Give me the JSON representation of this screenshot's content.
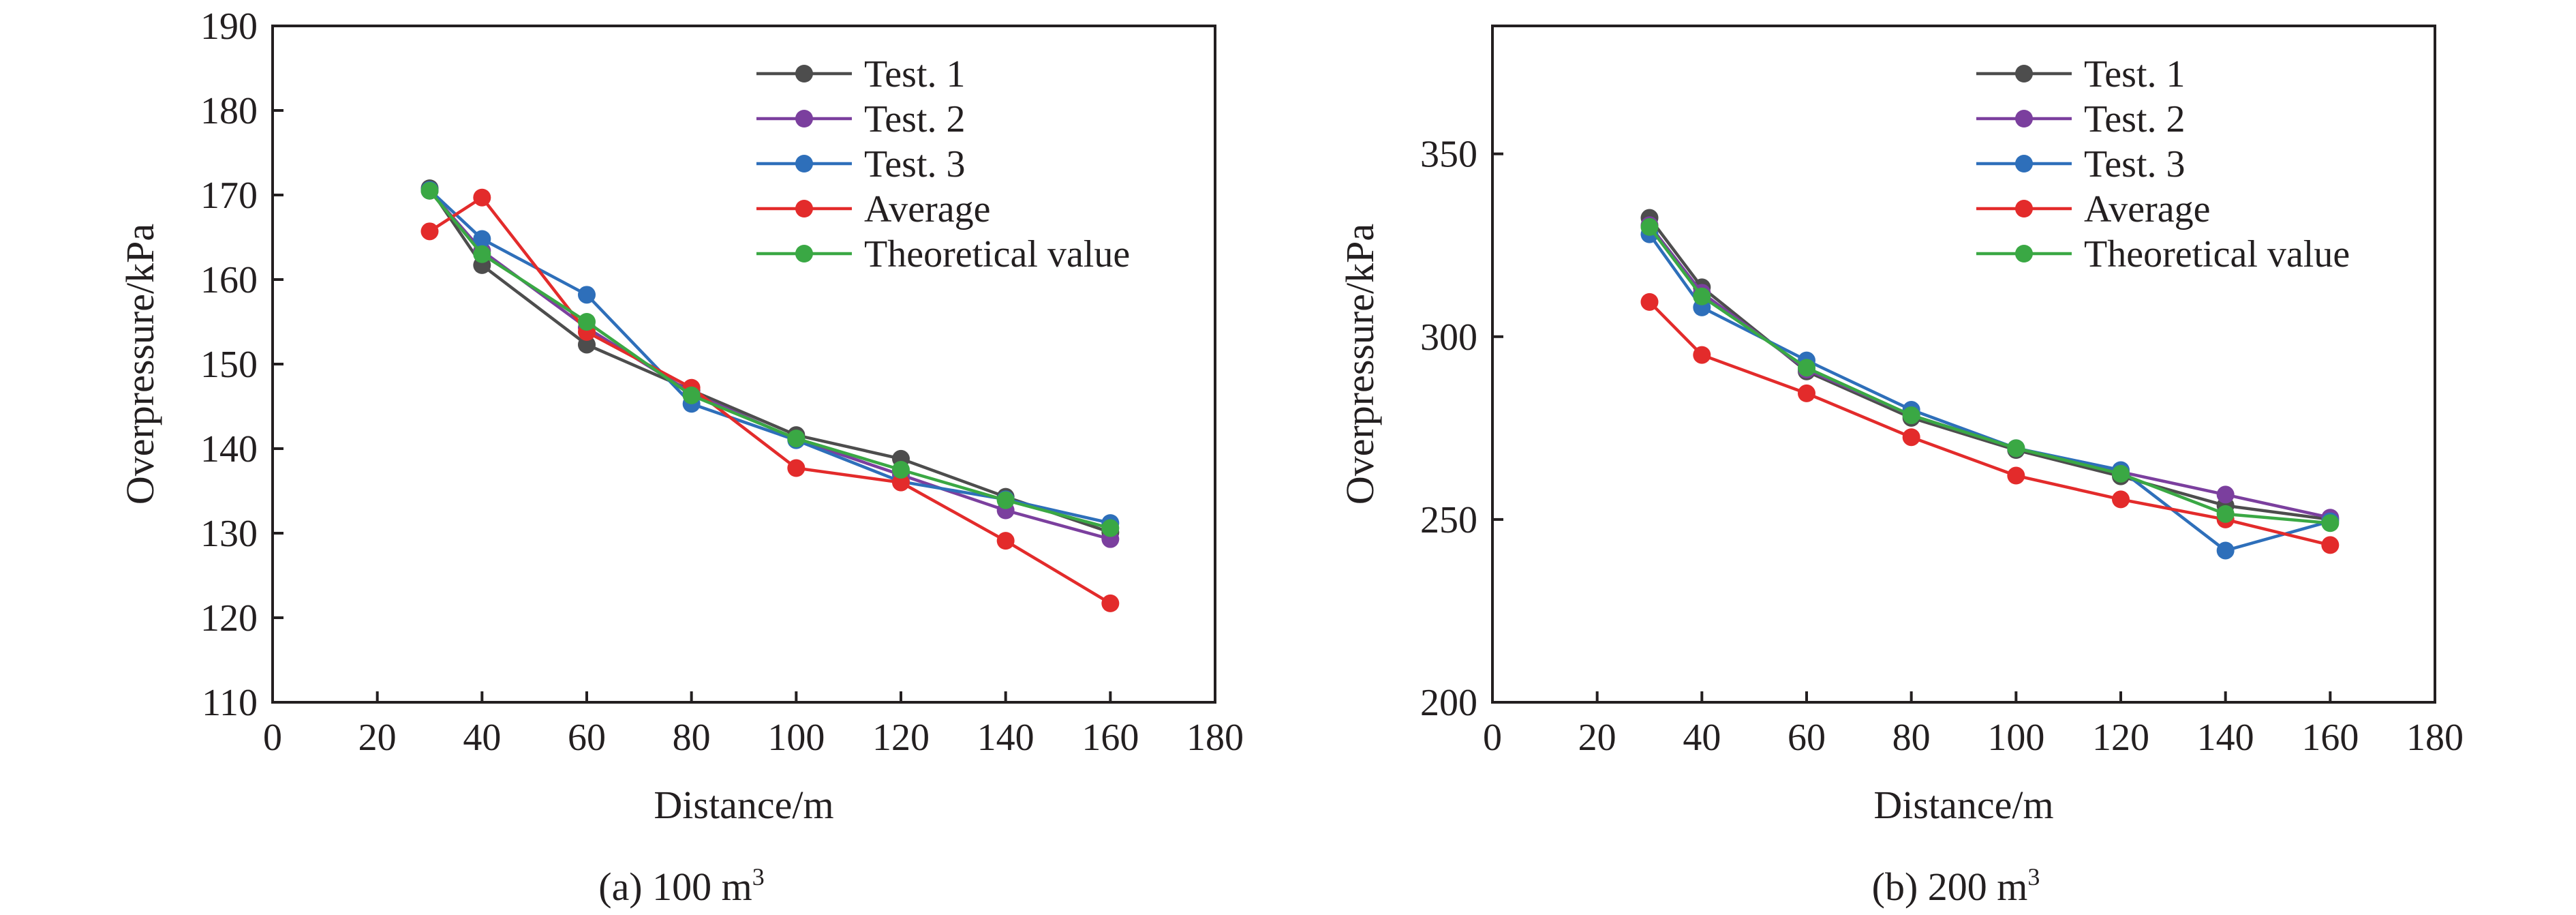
{
  "chart_data": [
    {
      "type": "line",
      "caption": "(a) 100 m",
      "caption_sup": "3",
      "xlabel": "Distance/m",
      "ylabel": "Overpressure/kPa",
      "xlim": [
        0,
        180
      ],
      "ylim": [
        110,
        190
      ],
      "xticks": [
        0,
        20,
        40,
        60,
        80,
        100,
        120,
        140,
        160,
        180
      ],
      "yticks": [
        110,
        120,
        130,
        140,
        150,
        160,
        170,
        180,
        190
      ],
      "grid": false,
      "legend_position": "top-right",
      "x": [
        30,
        40,
        60,
        80,
        100,
        120,
        140,
        160
      ],
      "series": [
        {
          "name": "Test. 1",
          "color": "#4d4d4d",
          "values": [
            170.8,
            161.7,
            152.3,
            146.9,
            141.6,
            138.8,
            134.3,
            130.1
          ]
        },
        {
          "name": "Test. 2",
          "color": "#7b3f9e",
          "values": [
            170.5,
            163.4,
            154.3,
            146.6,
            141.1,
            136.9,
            132.7,
            129.3
          ]
        },
        {
          "name": "Test. 3",
          "color": "#2e6fba",
          "values": [
            170.6,
            164.8,
            158.2,
            145.3,
            141.0,
            136.1,
            134.0,
            131.2
          ]
        },
        {
          "name": "Average",
          "color": "#e32b2b",
          "values": [
            165.7,
            169.7,
            153.8,
            147.2,
            137.7,
            136.0,
            129.1,
            121.7
          ]
        },
        {
          "name": "Theoretical value",
          "color": "#3aa844",
          "values": [
            170.5,
            163.0,
            155.0,
            146.3,
            141.2,
            137.5,
            133.9,
            130.6
          ]
        }
      ]
    },
    {
      "type": "line",
      "caption": "(b) 200 m",
      "caption_sup": "3",
      "xlabel": "Distance/m",
      "ylabel": "Overpressure/kPa",
      "xlim": [
        0,
        180
      ],
      "ylim": [
        200,
        385
      ],
      "xticks": [
        0,
        20,
        40,
        60,
        80,
        100,
        120,
        140,
        160,
        180
      ],
      "yticks": [
        200,
        250,
        300,
        350
      ],
      "grid": false,
      "legend_position": "top-right",
      "x": [
        30,
        40,
        60,
        80,
        100,
        120,
        140,
        160
      ],
      "series": [
        {
          "name": "Test. 1",
          "color": "#4d4d4d",
          "values": [
            332.5,
            313.5,
            290.5,
            277.8,
            269.0,
            261.8,
            253.8,
            250.0
          ]
        },
        {
          "name": "Test. 2",
          "color": "#7b3f9e",
          "values": [
            330.5,
            312.0,
            291.0,
            278.5,
            269.5,
            263.0,
            256.8,
            250.5
          ]
        },
        {
          "name": "Test. 3",
          "color": "#2e6fba",
          "values": [
            328.0,
            308.0,
            293.5,
            280.0,
            269.5,
            263.5,
            241.5,
            249.5
          ]
        },
        {
          "name": "Average",
          "color": "#e32b2b",
          "values": [
            309.5,
            295.0,
            284.5,
            272.5,
            262.0,
            255.5,
            250.0,
            243.0
          ]
        },
        {
          "name": "Theoretical value",
          "color": "#3aa844",
          "values": [
            330.0,
            311.0,
            291.5,
            278.5,
            269.5,
            262.5,
            251.5,
            249.0
          ]
        }
      ]
    }
  ]
}
